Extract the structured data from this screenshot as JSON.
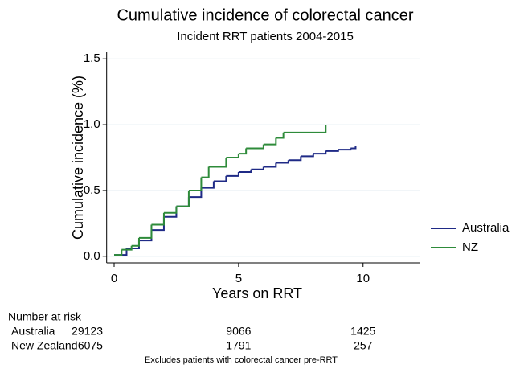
{
  "chart_data": {
    "type": "step",
    "title": "Cumulative incidence of colorectal cancer",
    "subtitle": "Incident RRT patients 2004-2015",
    "x_label": "Years on RRT",
    "y_label": "Cumulative incidence (%)",
    "xlim": [
      -0.3,
      12.3
    ],
    "ylim": [
      -0.05,
      1.55
    ],
    "xticks": [
      0,
      5,
      10
    ],
    "yticks": [
      {
        "value": 0,
        "label": "0.0"
      },
      {
        "value": 0.5,
        "label": "0.5"
      },
      {
        "value": 1,
        "label": "1.0"
      },
      {
        "value": 1.5,
        "label": "1.5"
      }
    ],
    "grid": true,
    "legend": "right",
    "series": [
      {
        "name": "Australia",
        "color": "#1f2a86",
        "x": [
          0,
          0.5,
          1,
          1.5,
          2,
          2.5,
          3,
          3.5,
          4,
          4.5,
          5,
          5.5,
          6,
          6.5,
          7,
          7.5,
          8,
          8.5,
          9,
          9.5,
          9.7
        ],
        "values": [
          0.01,
          0.06,
          0.12,
          0.2,
          0.3,
          0.38,
          0.45,
          0.52,
          0.57,
          0.61,
          0.64,
          0.66,
          0.68,
          0.71,
          0.73,
          0.76,
          0.78,
          0.8,
          0.81,
          0.82,
          0.84
        ]
      },
      {
        "name": "NZ",
        "color": "#2e8b3a",
        "x": [
          0,
          0.3,
          0.7,
          1,
          1.5,
          2,
          2.5,
          3,
          3.5,
          3.8,
          4.5,
          5,
          5.3,
          6,
          6.5,
          6.8,
          8.5
        ],
        "values": [
          0.01,
          0.05,
          0.08,
          0.14,
          0.24,
          0.33,
          0.38,
          0.5,
          0.6,
          0.68,
          0.75,
          0.78,
          0.82,
          0.85,
          0.9,
          0.94,
          1.0
        ]
      }
    ],
    "risk_table": {
      "title": "Number at risk",
      "rows": [
        {
          "label": "Australia",
          "values": [
            29123,
            9066,
            1425
          ]
        },
        {
          "label": "New Zealand",
          "values": [
            6075,
            1791,
            257
          ]
        }
      ]
    },
    "note": "Excludes patients with colorectal cancer pre-RRT"
  }
}
